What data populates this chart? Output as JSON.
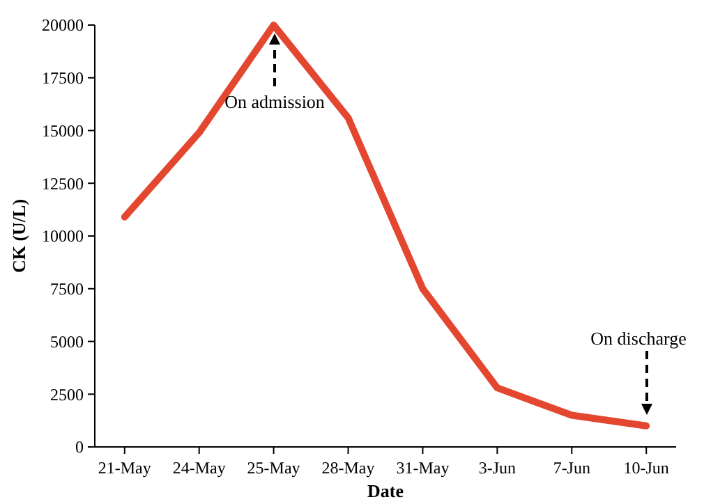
{
  "chart_data": {
    "type": "line",
    "xlabel": "Date",
    "ylabel": "CK (U/L)",
    "categories": [
      "21-May",
      "24-May",
      "25-May",
      "28-May",
      "31-May",
      "3-Jun",
      "7-Jun",
      "10-Jun"
    ],
    "series": [
      {
        "color": "#e4472f",
        "values": [
          10900,
          14900,
          20000,
          15600,
          7500,
          2800,
          1500,
          1000
        ]
      }
    ],
    "ylim": [
      0,
      20000
    ],
    "yticks": [
      0,
      2500,
      5000,
      7500,
      10000,
      12500,
      15000,
      17500,
      20000
    ],
    "grid": false,
    "marker": "none",
    "line_style": "solid",
    "annotations": [
      "On admission",
      "On discharge"
    ]
  }
}
